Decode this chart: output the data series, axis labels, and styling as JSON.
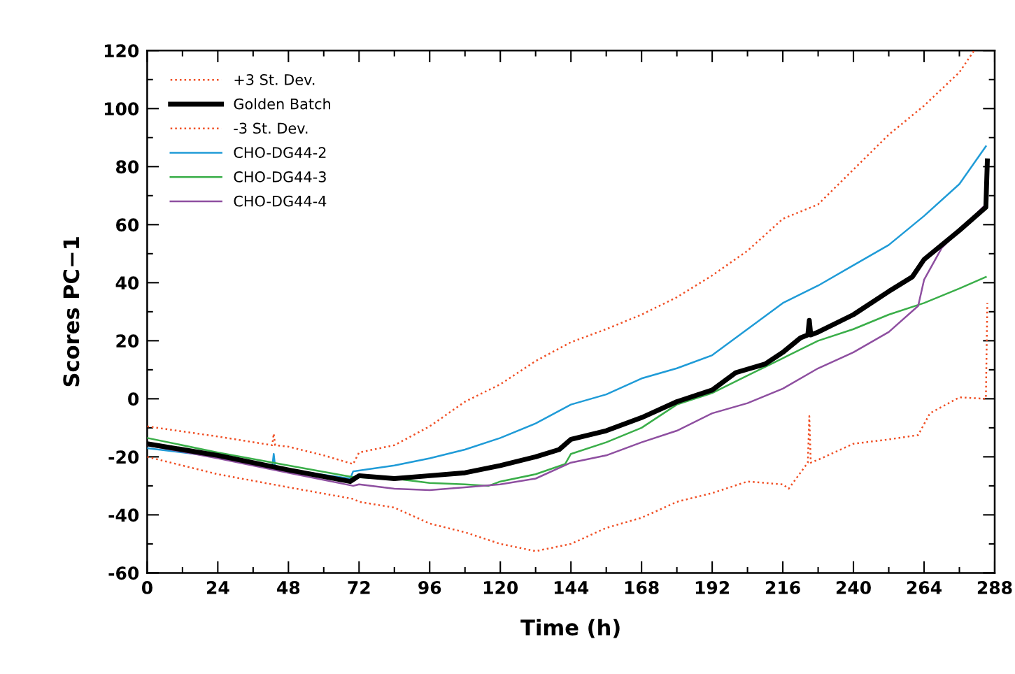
{
  "chart_data": {
    "type": "line",
    "xlabel": "Time (h)",
    "ylabel": "Scores PC−1",
    "xlim": [
      0,
      288
    ],
    "ylim": [
      -60,
      120
    ],
    "xticks": [
      0,
      {
        "value": 12,
        "label": null
      },
      24,
      {
        "value": 36,
        "label": null
      },
      48,
      {
        "value": 60,
        "label": null
      },
      72,
      {
        "value": 84,
        "label": null
      },
      96,
      {
        "value": 108,
        "label": null
      },
      120,
      {
        "value": 132,
        "label": null
      },
      144,
      {
        "value": 156,
        "label": null
      },
      168,
      {
        "value": 180,
        "label": null
      },
      192,
      {
        "value": 204,
        "label": null
      },
      216,
      {
        "value": 228,
        "label": null
      },
      240,
      {
        "value": 252,
        "label": null
      },
      264,
      {
        "value": 276,
        "label": null
      },
      288
    ],
    "yticks": [
      -60,
      {
        "value": -50,
        "label": null
      },
      -40,
      {
        "value": -30,
        "label": null
      },
      -20,
      {
        "value": -10,
        "label": null
      },
      0,
      {
        "value": 10,
        "label": null
      },
      20,
      {
        "value": 30,
        "label": null
      },
      40,
      {
        "value": 50,
        "label": null
      },
      60,
      {
        "value": 70,
        "label": null
      },
      80,
      {
        "value": 90,
        "label": null
      },
      100,
      {
        "value": 110,
        "label": null
      },
      120
    ],
    "legend": "top left",
    "grid": false,
    "series": [
      {
        "name": "+3 St. Dev.",
        "color": "#f04e23",
        "line_style": "dotted",
        "x": [
          0,
          24,
          42.5,
          43,
          43.5,
          48,
          60,
          70,
          72,
          84,
          96,
          108,
          120,
          132,
          144,
          156,
          168,
          180,
          192,
          204,
          216,
          228,
          240,
          252,
          264,
          276,
          281
        ],
        "values": [
          -9.5,
          -13,
          -16,
          -12,
          -16,
          -16.5,
          -19.5,
          -22.5,
          -18.5,
          -16,
          -9.5,
          -1,
          5,
          13,
          19.5,
          24,
          29,
          35,
          42.5,
          51,
          62,
          67,
          79,
          91,
          101,
          112.5,
          120
        ]
      },
      {
        "name": "Golden Batch",
        "color": "#000000",
        "line_style": "solid",
        "x": [
          0,
          24,
          48,
          69,
          72,
          84,
          96,
          108,
          120,
          132,
          140,
          144,
          156,
          168,
          180,
          192,
          200,
          210,
          216,
          222,
          224.5,
          225,
          225.5,
          228,
          240,
          252,
          260,
          264,
          276,
          285,
          285.5
        ],
        "values": [
          -15.5,
          -19.5,
          -24.5,
          -28.5,
          -26.5,
          -27.5,
          -26.5,
          -25.5,
          -23,
          -20,
          -17.5,
          -14,
          -11,
          -6.5,
          -1,
          3,
          9,
          12,
          16,
          21,
          22,
          27,
          22,
          23,
          29,
          37,
          42,
          48,
          58,
          66,
          82
        ]
      },
      {
        "name": "-3 St. Dev.",
        "color": "#f04e23",
        "line_style": "dotted",
        "x": [
          0,
          24,
          48,
          70,
          72,
          84,
          96,
          108,
          120,
          132,
          144,
          156,
          168,
          180,
          192,
          204,
          216,
          218,
          224.5,
          225,
          225.5,
          228,
          240,
          252,
          262,
          266,
          276,
          285,
          285.5
        ],
        "values": [
          -20,
          -26,
          -30.5,
          -34.5,
          -35.5,
          -37.5,
          -43,
          -46,
          -50,
          -52.5,
          -50,
          -44.5,
          -41,
          -35.5,
          -32.5,
          -28.5,
          -29.5,
          -31,
          -22,
          -6,
          -22,
          -21,
          -15.5,
          -14,
          -12.5,
          -5,
          0.5,
          0,
          33
        ]
      },
      {
        "name": "CHO-DG44-2",
        "color": "#1f9bd7",
        "line_style": "solid",
        "x": [
          0,
          24,
          42.5,
          43,
          43.5,
          48,
          69,
          70,
          84,
          96,
          108,
          120,
          132,
          144,
          156,
          168,
          180,
          192,
          204,
          216,
          228,
          240,
          252,
          264,
          276,
          285
        ],
        "values": [
          -17,
          -20,
          -23.5,
          -19,
          -23.5,
          -24.5,
          -27.5,
          -25,
          -23,
          -20.5,
          -17.5,
          -13.5,
          -8.5,
          -2,
          1.5,
          7,
          10.5,
          15,
          24,
          33,
          39,
          46,
          53,
          63,
          74,
          87
        ]
      },
      {
        "name": "CHO-DG44-3",
        "color": "#3aae49",
        "line_style": "solid",
        "x": [
          0,
          24,
          48,
          70,
          84,
          96,
          108,
          116,
          120,
          132,
          142,
          144,
          156,
          168,
          180,
          192,
          204,
          216,
          228,
          240,
          252,
          264,
          276,
          285
        ],
        "values": [
          -13.5,
          -18.5,
          -23,
          -27,
          -27.5,
          -29,
          -29.5,
          -30,
          -28.5,
          -26,
          -22.5,
          -19,
          -15,
          -10,
          -2,
          2,
          8,
          14,
          20,
          24,
          29,
          33,
          38,
          42
        ]
      },
      {
        "name": "CHO-DG44-4",
        "color": "#8e4fa0",
        "line_style": "solid",
        "x": [
          0,
          24,
          48,
          70,
          72,
          84,
          96,
          108,
          120,
          132,
          144,
          156,
          168,
          180,
          192,
          204,
          216,
          228,
          240,
          252,
          262,
          264,
          270,
          276,
          285
        ],
        "values": [
          -16,
          -20.5,
          -25.5,
          -30,
          -29.5,
          -31,
          -31.5,
          -30.5,
          -29.5,
          -27.5,
          -22,
          -19.5,
          -15,
          -11,
          -5,
          -1.5,
          3.5,
          10.5,
          16,
          23,
          32,
          41,
          52,
          58,
          67
        ]
      }
    ]
  }
}
